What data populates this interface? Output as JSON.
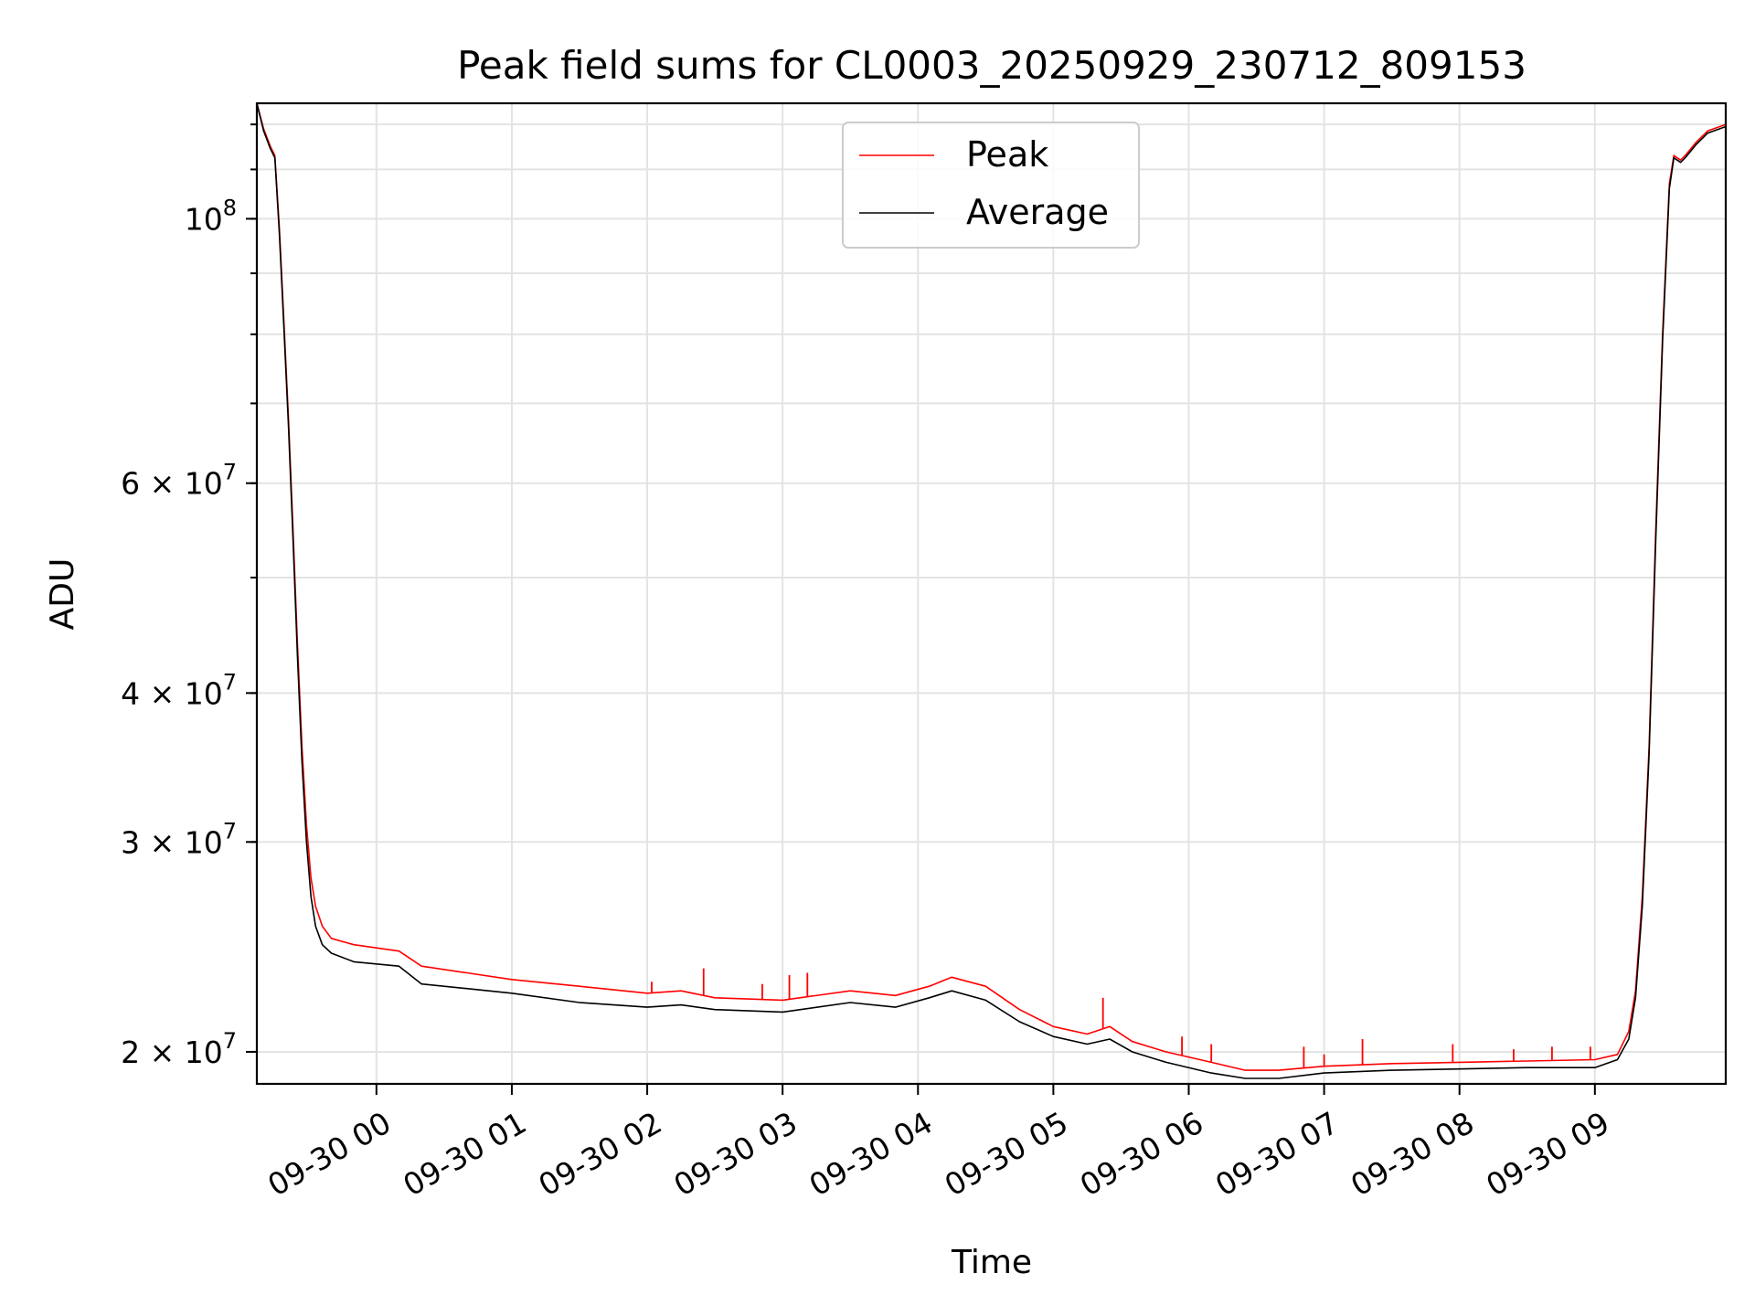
{
  "chart_data": {
    "type": "line",
    "title": "Peak field sums for CL0003_20250929_230712_809153",
    "xlabel": "Time",
    "ylabel": "ADU",
    "yscale": "log",
    "grid": true,
    "legend_placement": "upper-center",
    "x_range": [
      "09-29 23:07",
      "09-30 09:58"
    ],
    "ylim": [
      18800000,
      125000000
    ],
    "x_ticks": [
      "09-30 00",
      "09-30 01",
      "09-30 02",
      "09-30 03",
      "09-30 04",
      "09-30 05",
      "09-30 06",
      "09-30 07",
      "09-30 08",
      "09-30 09"
    ],
    "y_ticks": [
      {
        "value": 20000000,
        "mant": "2",
        "exp": "7"
      },
      {
        "value": 30000000,
        "mant": "3",
        "exp": "7"
      },
      {
        "value": 40000000,
        "mant": "4",
        "exp": "7"
      },
      {
        "value": 60000000,
        "mant": "6",
        "exp": "7"
      },
      {
        "value": 100000000,
        "mant": "",
        "exp": "8"
      }
    ],
    "series": [
      {
        "name": "Peak",
        "color": "#ff0000",
        "points": [
          [
            "09-29 23:07",
            125000000
          ],
          [
            "09-29 23:10",
            119000000
          ],
          [
            "09-29 23:13",
            115000000
          ],
          [
            "09-29 23:15",
            113000000
          ],
          [
            "09-29 23:17",
            98000000
          ],
          [
            "09-29 23:19",
            82000000
          ],
          [
            "09-29 23:21",
            68000000
          ],
          [
            "09-29 23:23",
            55000000
          ],
          [
            "09-29 23:25",
            44000000
          ],
          [
            "09-29 23:27",
            36000000
          ],
          [
            "09-29 23:29",
            31000000
          ],
          [
            "09-29 23:31",
            28000000
          ],
          [
            "09-29 23:33",
            26500000
          ],
          [
            "09-29 23:36",
            25500000
          ],
          [
            "09-29 23:40",
            24900000
          ],
          [
            "09-29 23:50",
            24600000
          ],
          [
            "09-30 00:10",
            24300000
          ],
          [
            "09-30 00:20",
            23600000
          ],
          [
            "09-30 00:40",
            23300000
          ],
          [
            "09-30 01:00",
            23000000
          ],
          [
            "09-30 01:30",
            22700000
          ],
          [
            "09-30 02:00",
            22400000
          ],
          [
            "09-30 02:15",
            22500000
          ],
          [
            "09-30 02:30",
            22200000
          ],
          [
            "09-30 03:00",
            22100000
          ],
          [
            "09-30 03:30",
            22500000
          ],
          [
            "09-30 03:50",
            22300000
          ],
          [
            "09-30 04:05",
            22700000
          ],
          [
            "09-30 04:15",
            23100000
          ],
          [
            "09-30 04:30",
            22700000
          ],
          [
            "09-30 04:45",
            21700000
          ],
          [
            "09-30 05:00",
            21000000
          ],
          [
            "09-30 05:15",
            20700000
          ],
          [
            "09-30 05:25",
            21000000
          ],
          [
            "09-30 05:35",
            20400000
          ],
          [
            "09-30 05:50",
            20000000
          ],
          [
            "09-30 06:10",
            19600000
          ],
          [
            "09-30 06:25",
            19300000
          ],
          [
            "09-30 06:40",
            19300000
          ],
          [
            "09-30 07:00",
            19450000
          ],
          [
            "09-30 07:30",
            19550000
          ],
          [
            "09-30 08:00",
            19600000
          ],
          [
            "09-30 08:30",
            19650000
          ],
          [
            "09-30 09:00",
            19700000
          ],
          [
            "09-30 09:10",
            19900000
          ],
          [
            "09-30 09:15",
            20800000
          ],
          [
            "09-30 09:18",
            22500000
          ],
          [
            "09-30 09:21",
            27000000
          ],
          [
            "09-30 09:24",
            36000000
          ],
          [
            "09-30 09:27",
            55000000
          ],
          [
            "09-30 09:30",
            80000000
          ],
          [
            "09-30 09:33",
            107000000
          ],
          [
            "09-30 09:35",
            113000000
          ],
          [
            "09-30 09:38",
            112000000
          ],
          [
            "09-30 09:40",
            113000000
          ],
          [
            "09-30 09:45",
            116000000
          ],
          [
            "09-30 09:50",
            118500000
          ],
          [
            "09-30 09:58",
            120000000
          ]
        ],
        "spikes": [
          [
            "09-30 02:02",
            22900000
          ],
          [
            "09-30 02:25",
            23500000
          ],
          [
            "09-30 02:51",
            22800000
          ],
          [
            "09-30 03:03",
            23200000
          ],
          [
            "09-30 03:11",
            23300000
          ],
          [
            "09-30 05:22",
            22200000
          ],
          [
            "09-30 05:57",
            20600000
          ],
          [
            "09-30 06:10",
            20300000
          ],
          [
            "09-30 06:51",
            20200000
          ],
          [
            "09-30 07:00",
            19900000
          ],
          [
            "09-30 07:17",
            20500000
          ],
          [
            "09-30 07:57",
            20300000
          ],
          [
            "09-30 08:24",
            20100000
          ],
          [
            "09-30 08:41",
            20200000
          ],
          [
            "09-30 08:58",
            20200000
          ]
        ]
      },
      {
        "name": "Average",
        "color": "#000000",
        "points": [
          [
            "09-29 23:07",
            125000000
          ],
          [
            "09-29 23:10",
            118500000
          ],
          [
            "09-29 23:13",
            114500000
          ],
          [
            "09-29 23:15",
            112500000
          ],
          [
            "09-29 23:17",
            97000000
          ],
          [
            "09-29 23:19",
            81000000
          ],
          [
            "09-29 23:21",
            67000000
          ],
          [
            "09-29 23:23",
            54000000
          ],
          [
            "09-29 23:25",
            43000000
          ],
          [
            "09-29 23:27",
            35000000
          ],
          [
            "09-29 23:29",
            30000000
          ],
          [
            "09-29 23:31",
            27000000
          ],
          [
            "09-29 23:33",
            25500000
          ],
          [
            "09-29 23:36",
            24600000
          ],
          [
            "09-29 23:40",
            24200000
          ],
          [
            "09-29 23:50",
            23800000
          ],
          [
            "09-30 00:10",
            23600000
          ],
          [
            "09-30 00:20",
            22800000
          ],
          [
            "09-30 00:40",
            22600000
          ],
          [
            "09-30 01:00",
            22400000
          ],
          [
            "09-30 01:30",
            22000000
          ],
          [
            "09-30 02:00",
            21800000
          ],
          [
            "09-30 02:15",
            21900000
          ],
          [
            "09-30 02:30",
            21700000
          ],
          [
            "09-30 03:00",
            21600000
          ],
          [
            "09-30 03:30",
            22000000
          ],
          [
            "09-30 03:50",
            21800000
          ],
          [
            "09-30 04:05",
            22200000
          ],
          [
            "09-30 04:15",
            22500000
          ],
          [
            "09-30 04:30",
            22100000
          ],
          [
            "09-30 04:45",
            21200000
          ],
          [
            "09-30 05:00",
            20600000
          ],
          [
            "09-30 05:15",
            20300000
          ],
          [
            "09-30 05:25",
            20500000
          ],
          [
            "09-30 05:35",
            20000000
          ],
          [
            "09-30 05:50",
            19600000
          ],
          [
            "09-30 06:10",
            19200000
          ],
          [
            "09-30 06:25",
            19000000
          ],
          [
            "09-30 06:40",
            19000000
          ],
          [
            "09-30 07:00",
            19200000
          ],
          [
            "09-30 07:30",
            19300000
          ],
          [
            "09-30 08:00",
            19350000
          ],
          [
            "09-30 08:30",
            19400000
          ],
          [
            "09-30 09:00",
            19400000
          ],
          [
            "09-30 09:10",
            19700000
          ],
          [
            "09-30 09:15",
            20500000
          ],
          [
            "09-30 09:18",
            22200000
          ],
          [
            "09-30 09:21",
            26500000
          ],
          [
            "09-30 09:24",
            35500000
          ],
          [
            "09-30 09:27",
            54000000
          ],
          [
            "09-30 09:30",
            79000000
          ],
          [
            "09-30 09:33",
            106000000
          ],
          [
            "09-30 09:35",
            112500000
          ],
          [
            "09-30 09:38",
            111500000
          ],
          [
            "09-30 09:40",
            112500000
          ],
          [
            "09-30 09:45",
            115500000
          ],
          [
            "09-30 09:50",
            118000000
          ],
          [
            "09-30 09:58",
            119500000
          ]
        ]
      }
    ]
  }
}
